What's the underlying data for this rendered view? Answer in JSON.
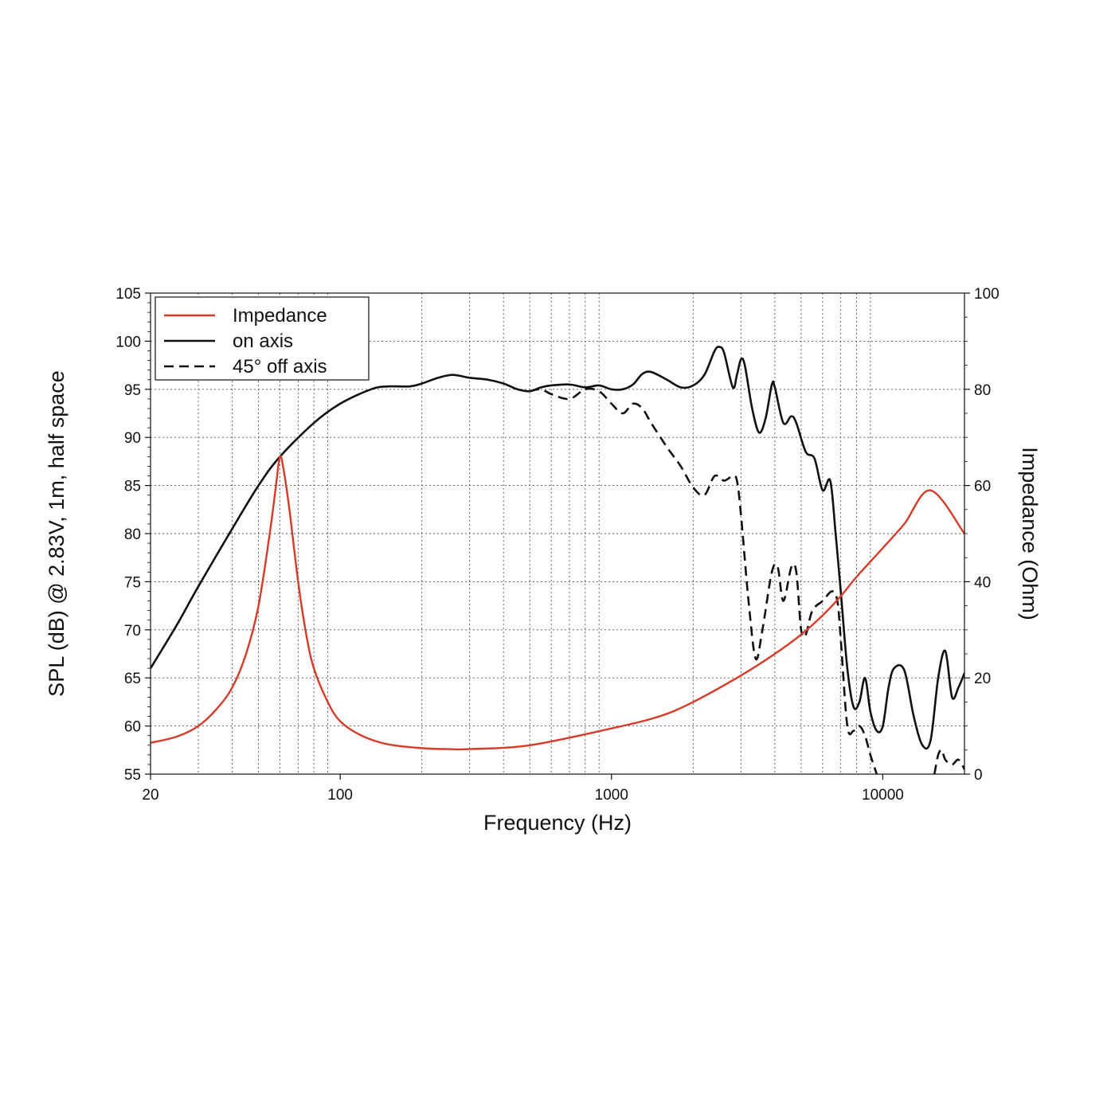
{
  "chart_data": {
    "type": "line",
    "xlabel": "Frequency (Hz)",
    "ylabel_left": "SPL (dB) @ 2.83V, 1m, half space",
    "ylabel_right": "Impedance (Ohm)",
    "x_scale": "log",
    "xlim": [
      20,
      20000
    ],
    "ylim_left": [
      55,
      105
    ],
    "ylim_right": [
      0,
      100
    ],
    "x_ticks": [
      {
        "value": 20,
        "label": "20"
      },
      {
        "value": 100,
        "label": "100"
      },
      {
        "value": 1000,
        "label": "1000"
      },
      {
        "value": 10000,
        "label": "10000"
      }
    ],
    "y_ticks_left": [
      55,
      60,
      65,
      70,
      75,
      80,
      85,
      90,
      95,
      100,
      105
    ],
    "y_ticks_right": [
      0,
      20,
      40,
      60,
      80,
      100
    ],
    "grid": true,
    "legend_position": "top-left",
    "series": [
      {
        "name": "Impedance",
        "axis": "right",
        "color": "#d63b2a",
        "dash": "solid",
        "points": [
          [
            20,
            6.5
          ],
          [
            25,
            7.8
          ],
          [
            30,
            10
          ],
          [
            35,
            13.5
          ],
          [
            40,
            18
          ],
          [
            45,
            25
          ],
          [
            50,
            35
          ],
          [
            55,
            50
          ],
          [
            58,
            60
          ],
          [
            60,
            66
          ],
          [
            62,
            63
          ],
          [
            65,
            55
          ],
          [
            70,
            40
          ],
          [
            75,
            29
          ],
          [
            80,
            22
          ],
          [
            90,
            15
          ],
          [
            100,
            11
          ],
          [
            120,
            8
          ],
          [
            150,
            6.2
          ],
          [
            200,
            5.4
          ],
          [
            250,
            5.2
          ],
          [
            300,
            5.2
          ],
          [
            500,
            6
          ],
          [
            1000,
            9.5
          ],
          [
            1500,
            12
          ],
          [
            2000,
            15
          ],
          [
            3000,
            20.5
          ],
          [
            4000,
            25
          ],
          [
            5000,
            29
          ],
          [
            6000,
            33
          ],
          [
            7000,
            37
          ],
          [
            8000,
            41
          ],
          [
            10000,
            47
          ],
          [
            12000,
            52
          ],
          [
            15000,
            59
          ],
          [
            20000,
            50
          ]
        ]
      },
      {
        "name": "on axis",
        "axis": "left",
        "color": "#111111",
        "dash": "solid",
        "points": [
          [
            20,
            66
          ],
          [
            25,
            70.5
          ],
          [
            30,
            74.5
          ],
          [
            40,
            80.5
          ],
          [
            50,
            85
          ],
          [
            60,
            88
          ],
          [
            80,
            91.5
          ],
          [
            100,
            93.5
          ],
          [
            130,
            95
          ],
          [
            150,
            95.3
          ],
          [
            180,
            95.3
          ],
          [
            200,
            95.6
          ],
          [
            230,
            96.2
          ],
          [
            260,
            96.5
          ],
          [
            300,
            96.2
          ],
          [
            350,
            96
          ],
          [
            400,
            95.6
          ],
          [
            450,
            95
          ],
          [
            500,
            94.8
          ],
          [
            550,
            95.2
          ],
          [
            600,
            95.4
          ],
          [
            700,
            95.5
          ],
          [
            800,
            95.2
          ],
          [
            900,
            95.4
          ],
          [
            1000,
            95
          ],
          [
            1100,
            95
          ],
          [
            1200,
            95.5
          ],
          [
            1300,
            96.6
          ],
          [
            1400,
            96.8
          ],
          [
            1600,
            96
          ],
          [
            1800,
            95.2
          ],
          [
            2000,
            95.4
          ],
          [
            2200,
            96.5
          ],
          [
            2400,
            99
          ],
          [
            2500,
            99.4
          ],
          [
            2600,
            98.8
          ],
          [
            2800,
            95.2
          ],
          [
            2900,
            96.5
          ],
          [
            3000,
            98.1
          ],
          [
            3100,
            97.5
          ],
          [
            3300,
            93
          ],
          [
            3500,
            90.5
          ],
          [
            3700,
            92
          ],
          [
            3900,
            95.5
          ],
          [
            4000,
            95.2
          ],
          [
            4300,
            91.5
          ],
          [
            4600,
            92.2
          ],
          [
            4800,
            91.5
          ],
          [
            5200,
            88.5
          ],
          [
            5600,
            87.8
          ],
          [
            6000,
            84.5
          ],
          [
            6400,
            85.5
          ],
          [
            6700,
            80
          ],
          [
            7000,
            74
          ],
          [
            7400,
            66
          ],
          [
            7800,
            62
          ],
          [
            8200,
            62.5
          ],
          [
            8600,
            65
          ],
          [
            9000,
            61.5
          ],
          [
            9500,
            59.5
          ],
          [
            10000,
            60
          ],
          [
            10500,
            64
          ],
          [
            11000,
            66
          ],
          [
            12000,
            65.8
          ],
          [
            13000,
            61
          ],
          [
            14000,
            58
          ],
          [
            15000,
            58.5
          ],
          [
            16000,
            65
          ],
          [
            17000,
            67.8
          ],
          [
            18000,
            63
          ],
          [
            19000,
            64
          ],
          [
            20000,
            65.5
          ]
        ]
      },
      {
        "name": "45° off axis",
        "axis": "left",
        "color": "#111111",
        "dash": "dashed",
        "points": [
          [
            500,
            94.8
          ],
          [
            550,
            95
          ],
          [
            600,
            94.5
          ],
          [
            700,
            94
          ],
          [
            800,
            95
          ],
          [
            900,
            94.8
          ],
          [
            1000,
            93.5
          ],
          [
            1100,
            92.5
          ],
          [
            1200,
            93.5
          ],
          [
            1300,
            93
          ],
          [
            1400,
            91.5
          ],
          [
            1600,
            89
          ],
          [
            1800,
            87
          ],
          [
            2000,
            84.8
          ],
          [
            2200,
            84
          ],
          [
            2400,
            86
          ],
          [
            2600,
            85.5
          ],
          [
            2800,
            86
          ],
          [
            2900,
            85.5
          ],
          [
            3000,
            82
          ],
          [
            3200,
            73
          ],
          [
            3400,
            67
          ],
          [
            3600,
            70
          ],
          [
            3900,
            76
          ],
          [
            4100,
            76.5
          ],
          [
            4300,
            73
          ],
          [
            4600,
            76.5
          ],
          [
            4800,
            76
          ],
          [
            5000,
            70
          ],
          [
            5200,
            69.5
          ],
          [
            5500,
            72
          ],
          [
            6000,
            73
          ],
          [
            6500,
            74
          ],
          [
            6800,
            73
          ],
          [
            7000,
            69
          ],
          [
            7400,
            60
          ],
          [
            7800,
            59.5
          ],
          [
            8200,
            60
          ],
          [
            8600,
            59
          ],
          [
            9000,
            57
          ],
          [
            9500,
            55
          ]
        ]
      },
      {
        "name": "45° off axis",
        "axis": "left",
        "color": "#111111",
        "dash": "dashed",
        "points": [
          [
            15500,
            55
          ],
          [
            16000,
            57
          ],
          [
            16500,
            57.5
          ],
          [
            17000,
            56.5
          ],
          [
            18000,
            56
          ],
          [
            19000,
            56.5
          ],
          [
            20000,
            55.5
          ]
        ]
      }
    ],
    "legend": [
      "Impedance",
      "on axis",
      "45° off axis"
    ]
  }
}
